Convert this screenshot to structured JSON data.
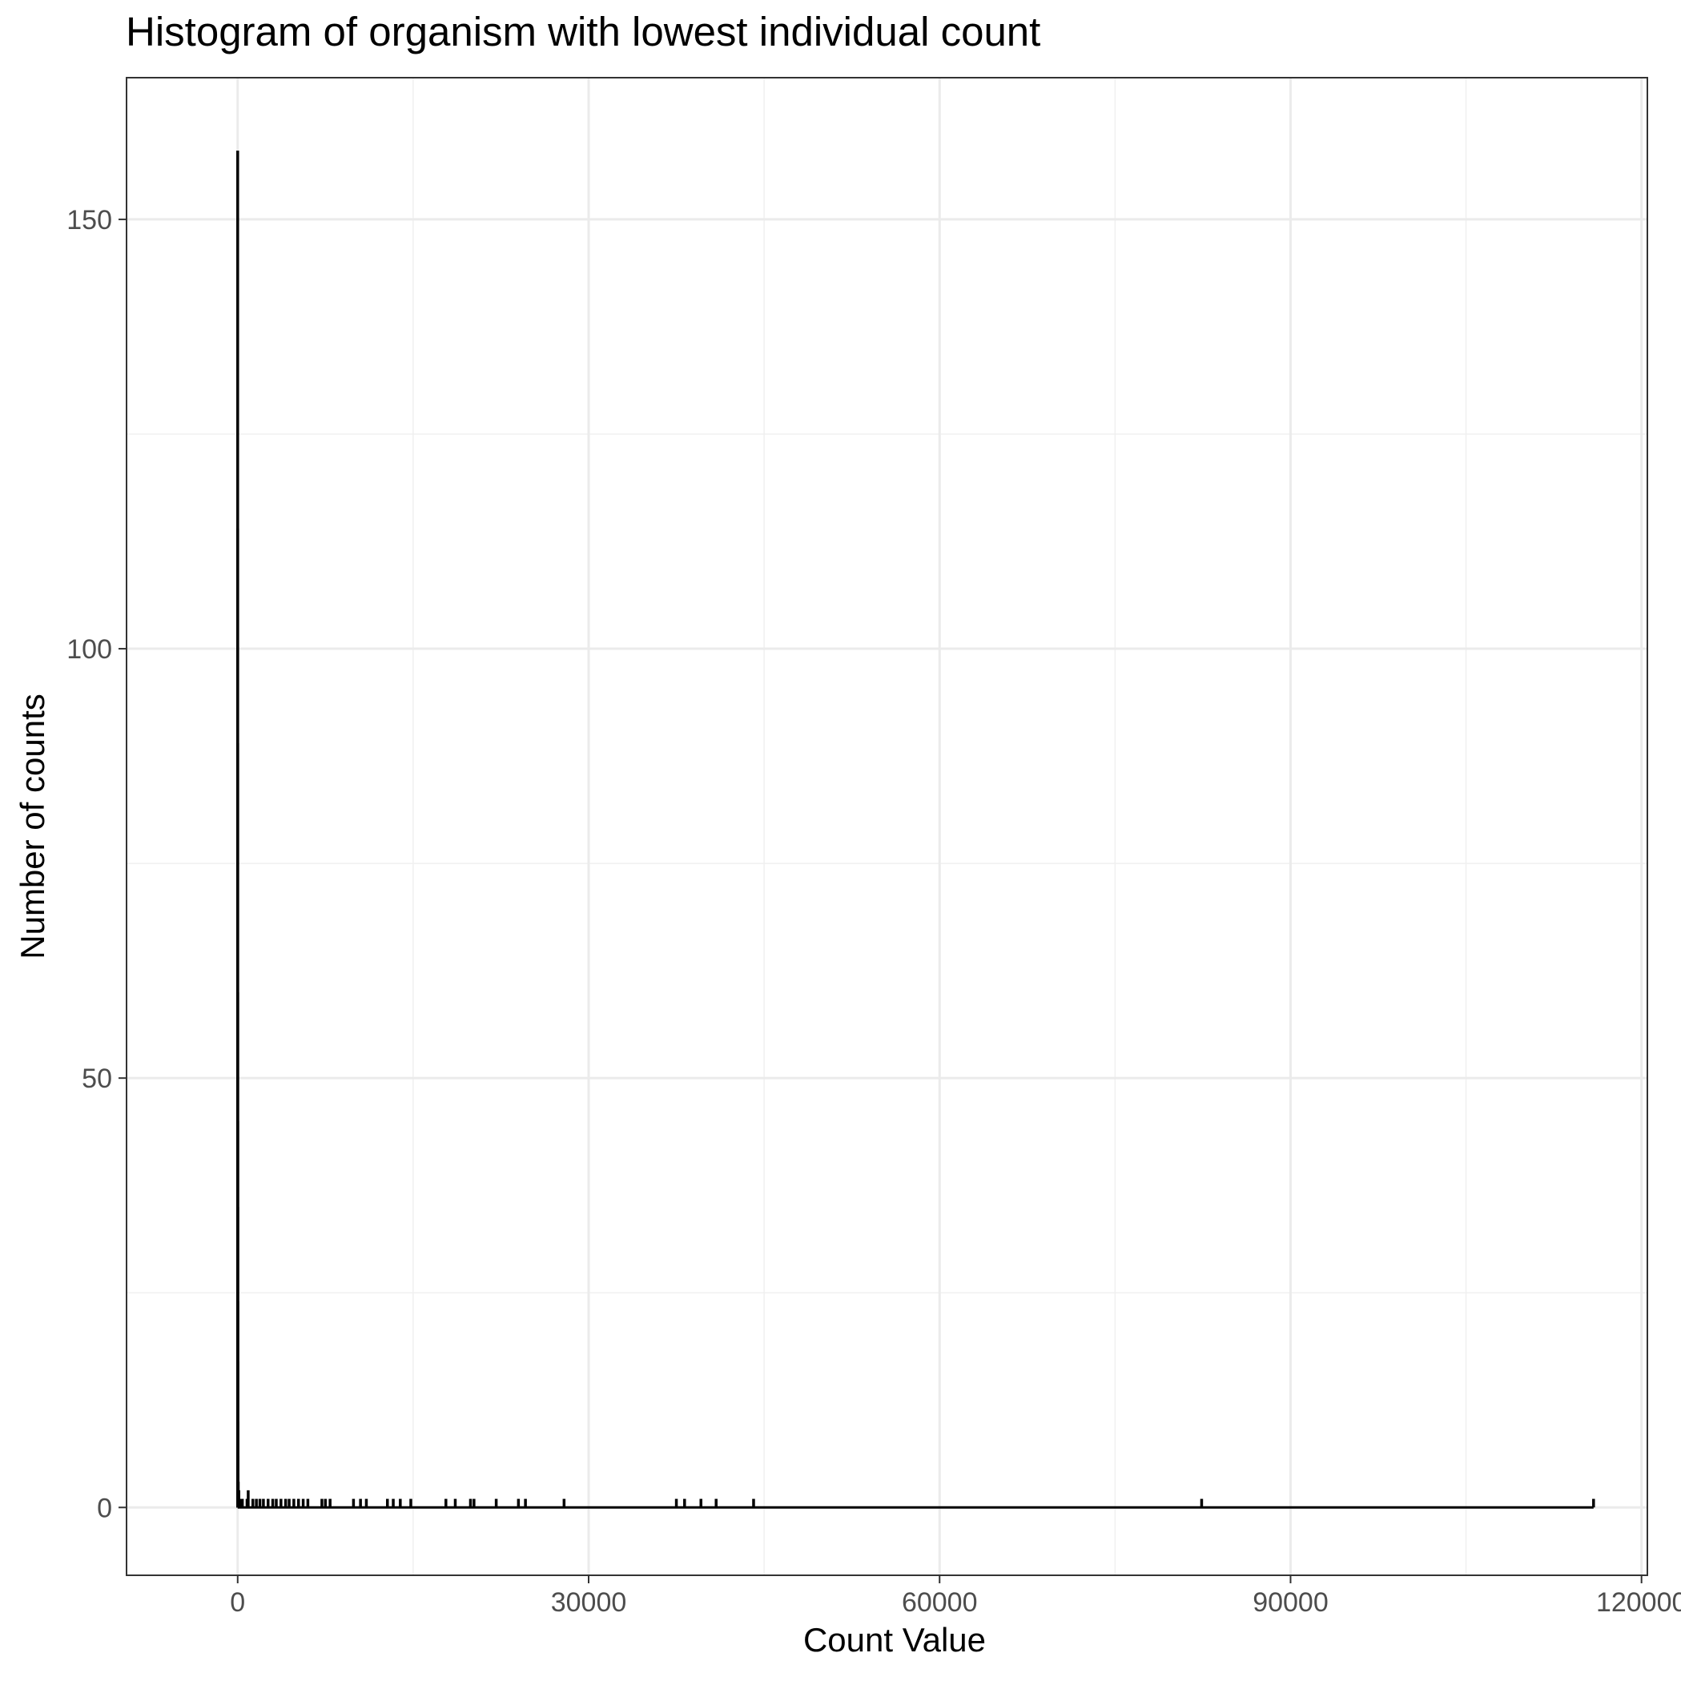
{
  "chart_data": {
    "type": "bar",
    "title": "Histogram of organism with lowest individual count",
    "xlabel": "Count Value",
    "ylabel": "Number of counts",
    "xlim": [
      -9500,
      120500
    ],
    "ylim": [
      -7.9,
      166.5
    ],
    "grid": true,
    "x_ticks": [
      0,
      30000,
      60000,
      90000,
      120000
    ],
    "x_tick_labels": [
      "0",
      "30000",
      "60000",
      "90000",
      "120000"
    ],
    "y_ticks": [
      0,
      50,
      100,
      150
    ],
    "y_tick_labels": [
      "0",
      "50",
      "100",
      "150"
    ],
    "bin_width": 1,
    "bins": [
      {
        "x": 1,
        "count": 158
      },
      {
        "x": 2,
        "count": 114
      },
      {
        "x": 3,
        "count": 89
      },
      {
        "x": 4,
        "count": 60
      },
      {
        "x": 5,
        "count": 45
      },
      {
        "x": 6,
        "count": 35
      },
      {
        "x": 8,
        "count": 24
      },
      {
        "x": 10,
        "count": 17
      },
      {
        "x": 15,
        "count": 10
      },
      {
        "x": 20,
        "count": 6
      },
      {
        "x": 30,
        "count": 4
      },
      {
        "x": 50,
        "count": 3
      },
      {
        "x": 100,
        "count": 2
      },
      {
        "x": 200,
        "count": 1
      },
      {
        "x": 400,
        "count": 1
      },
      {
        "x": 800,
        "count": 1
      },
      {
        "x": 900,
        "count": 2
      },
      {
        "x": 1300,
        "count": 1
      },
      {
        "x": 1600,
        "count": 1
      },
      {
        "x": 1900,
        "count": 1
      },
      {
        "x": 2200,
        "count": 1
      },
      {
        "x": 2600,
        "count": 1
      },
      {
        "x": 3000,
        "count": 1
      },
      {
        "x": 3300,
        "count": 1
      },
      {
        "x": 3700,
        "count": 1
      },
      {
        "x": 4100,
        "count": 1
      },
      {
        "x": 4400,
        "count": 1
      },
      {
        "x": 4800,
        "count": 1
      },
      {
        "x": 5200,
        "count": 1
      },
      {
        "x": 5600,
        "count": 1
      },
      {
        "x": 6000,
        "count": 1
      },
      {
        "x": 7200,
        "count": 1
      },
      {
        "x": 7500,
        "count": 1
      },
      {
        "x": 7900,
        "count": 1
      },
      {
        "x": 9900,
        "count": 1
      },
      {
        "x": 10500,
        "count": 1
      },
      {
        "x": 11000,
        "count": 1
      },
      {
        "x": 12800,
        "count": 1
      },
      {
        "x": 13300,
        "count": 1
      },
      {
        "x": 13900,
        "count": 1
      },
      {
        "x": 14800,
        "count": 1
      },
      {
        "x": 17800,
        "count": 1
      },
      {
        "x": 18600,
        "count": 1
      },
      {
        "x": 19900,
        "count": 1
      },
      {
        "x": 20200,
        "count": 1
      },
      {
        "x": 22100,
        "count": 1
      },
      {
        "x": 24000,
        "count": 1
      },
      {
        "x": 24600,
        "count": 1
      },
      {
        "x": 27900,
        "count": 1
      },
      {
        "x": 37500,
        "count": 1
      },
      {
        "x": 38200,
        "count": 1
      },
      {
        "x": 39600,
        "count": 1
      },
      {
        "x": 40900,
        "count": 1
      },
      {
        "x": 44100,
        "count": 1
      },
      {
        "x": 82400,
        "count": 1
      },
      {
        "x": 115900,
        "count": 1
      }
    ]
  }
}
